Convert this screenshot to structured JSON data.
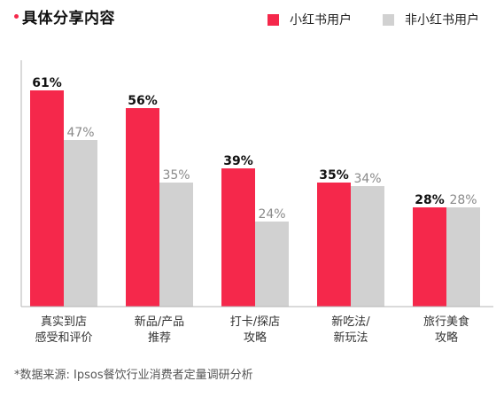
{
  "title": "具体分享内容",
  "source": "*数据来源: Ipsos餐饮行业消费者定量调研分析",
  "colors": {
    "accent": "#f5284b",
    "secondary": "#d1d1d1"
  },
  "chart_data": {
    "type": "bar",
    "title": "具体分享内容",
    "xlabel": "",
    "ylabel": "",
    "ylim": [
      0,
      100
    ],
    "grid": false,
    "legend_position": "top-right",
    "categories": [
      "真实到店\n感受和评价",
      "新品/产品\n推荐",
      "打卡/探店\n攻略",
      "新吃法/\n新玩法",
      "旅行美食\n攻略"
    ],
    "series": [
      {
        "name": "小红书用户",
        "color": "#f5284b",
        "values": [
          61,
          56,
          39,
          35,
          28
        ],
        "labels": [
          "61%",
          "56%",
          "39%",
          "35%",
          "28%"
        ]
      },
      {
        "name": "非小红书用户",
        "color": "#d1d1d1",
        "values": [
          47,
          35,
          24,
          34,
          28
        ],
        "labels": [
          "47%",
          "35%",
          "24%",
          "34%",
          "28%"
        ]
      }
    ]
  }
}
